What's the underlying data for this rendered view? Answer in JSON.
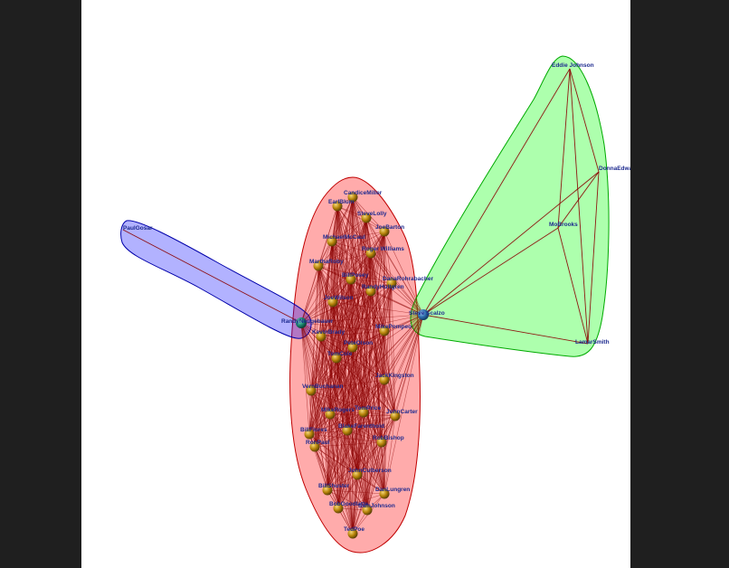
{
  "colors": {
    "background": "#ffffff",
    "outer_background": "#1f1f1f",
    "edge": "#8b0000",
    "hub_node": "#2f6fb0",
    "member_node": "#b8860b",
    "label": "#1d2a8f"
  },
  "groups": [
    {
      "id": "red-cluster",
      "fill": "#ff0000",
      "stroke": "#c00000"
    },
    {
      "id": "blue-cluster",
      "fill": "#0000ff",
      "stroke": "#0000aa"
    },
    {
      "id": "green-cluster",
      "fill": "#00ff00",
      "stroke": "#00aa00"
    }
  ],
  "nodes": [
    {
      "id": "hub",
      "label": "Steve Scalzo",
      "kind": "hub",
      "group": "green"
    },
    {
      "id": "bridge",
      "label": "RandyNeugebauer",
      "kind": "bridge",
      "group": "blue"
    },
    {
      "id": "pg",
      "label": "PaulGosar",
      "kind": "plain",
      "group": "blue"
    },
    {
      "id": "ej",
      "label": "Eddie Johnson",
      "kind": "plain",
      "group": "green"
    },
    {
      "id": "de",
      "label": "DonnaEdwards",
      "kind": "plain",
      "group": "green"
    },
    {
      "id": "mb",
      "label": "MoBrooks",
      "kind": "plain",
      "group": "green"
    },
    {
      "id": "ls",
      "label": "LamarSmith",
      "kind": "plain",
      "group": "green"
    },
    {
      "id": "r1",
      "label": "CandiceMiller",
      "kind": "member",
      "group": "red"
    },
    {
      "id": "r2",
      "label": "EarlBlum",
      "kind": "member",
      "group": "red"
    },
    {
      "id": "r3",
      "label": "SteveLolly",
      "kind": "member",
      "group": "red"
    },
    {
      "id": "r4",
      "label": "JoeBarton",
      "kind": "member",
      "group": "red"
    },
    {
      "id": "r5",
      "label": "MichaelMcCaul",
      "kind": "member",
      "group": "red"
    },
    {
      "id": "r6",
      "label": "MarthaRoby",
      "kind": "member",
      "group": "red"
    },
    {
      "id": "r7",
      "label": "BillPosey",
      "kind": "member",
      "group": "red"
    },
    {
      "id": "r8",
      "label": "DanaRohrabacher",
      "kind": "member",
      "group": "red"
    },
    {
      "id": "r9",
      "label": "RandyHultgren",
      "kind": "member",
      "group": "red"
    },
    {
      "id": "r10",
      "label": "JoeWilson",
      "kind": "member",
      "group": "red"
    },
    {
      "id": "r11",
      "label": "KevinBrady",
      "kind": "member",
      "group": "red"
    },
    {
      "id": "r12",
      "label": "MikePompeo",
      "kind": "member",
      "group": "red"
    },
    {
      "id": "r13",
      "label": "PeteOlson",
      "kind": "member",
      "group": "red"
    },
    {
      "id": "r14",
      "label": "TomCole",
      "kind": "member",
      "group": "red"
    },
    {
      "id": "r15",
      "label": "JackKingston",
      "kind": "member",
      "group": "red"
    },
    {
      "id": "r16",
      "label": "VernBuchanan",
      "kind": "member",
      "group": "red"
    },
    {
      "id": "r17",
      "label": "MikeRogers",
      "kind": "member",
      "group": "red"
    },
    {
      "id": "r18",
      "label": "TomPrice",
      "kind": "member",
      "group": "red"
    },
    {
      "id": "r19",
      "label": "JohnCarter",
      "kind": "member",
      "group": "red"
    },
    {
      "id": "r20",
      "label": "BlakeFarenthold",
      "kind": "member",
      "group": "red"
    },
    {
      "id": "r21",
      "label": "RobBishop",
      "kind": "member",
      "group": "red"
    },
    {
      "id": "r22",
      "label": "RonPaul",
      "kind": "member",
      "group": "red"
    },
    {
      "id": "r23",
      "label": "JohnCulberson",
      "kind": "member",
      "group": "red"
    },
    {
      "id": "r24",
      "label": "BillShuster",
      "kind": "member",
      "group": "red"
    },
    {
      "id": "r25",
      "label": "DanLungren",
      "kind": "member",
      "group": "red"
    },
    {
      "id": "r26",
      "label": "BobGoodlatte",
      "kind": "member",
      "group": "red"
    },
    {
      "id": "r27",
      "label": "SamJohnson",
      "kind": "member",
      "group": "red"
    },
    {
      "id": "r28",
      "label": "TedPoe",
      "kind": "member",
      "group": "red"
    },
    {
      "id": "r29",
      "label": "BillFlores",
      "kind": "member",
      "group": "red"
    },
    {
      "id": "r30",
      "label": "Roger Williams",
      "kind": "member",
      "group": "red"
    }
  ],
  "sparse_edges": [
    [
      "bridge",
      "pg"
    ],
    [
      "hub",
      "ej"
    ],
    [
      "hub",
      "de"
    ],
    [
      "hub",
      "mb"
    ],
    [
      "hub",
      "ls"
    ],
    [
      "ej",
      "de"
    ],
    [
      "ej",
      "mb"
    ],
    [
      "ej",
      "ls"
    ],
    [
      "de",
      "mb"
    ],
    [
      "de",
      "ls"
    ],
    [
      "mb",
      "ls"
    ]
  ],
  "dense_clusters": [
    {
      "members": [
        "hub",
        "bridge",
        "r1",
        "r2",
        "r3",
        "r4",
        "r5",
        "r6",
        "r7",
        "r8",
        "r9",
        "r10",
        "r11",
        "r12",
        "r13",
        "r14",
        "r15",
        "r16",
        "r17",
        "r18",
        "r19",
        "r20",
        "r21",
        "r22",
        "r23",
        "r24",
        "r25",
        "r26",
        "r27",
        "r28",
        "r29",
        "r30"
      ]
    }
  ]
}
